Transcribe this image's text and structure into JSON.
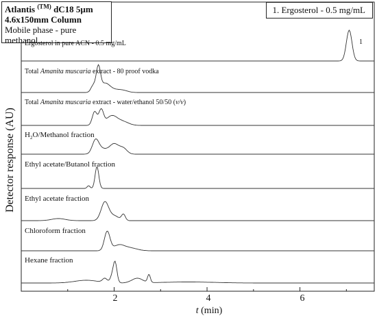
{
  "info_box": {
    "line1_main": "Atlantis",
    "line1_sup": "(TM)",
    "line1_rest": "dC18 5µm",
    "line2": "4.6x150mm Column",
    "line3": "Mobile phase - pure methanol"
  },
  "legend": {
    "text": "1. Ergosterol - 0.5 mg/mL"
  },
  "chart_data": {
    "type": "line",
    "xlabel_t": "t",
    "xlabel_unit": "(min)",
    "ylabel": "Detector response (AU)",
    "xlim": [
      0,
      7.6
    ],
    "xticks": [
      "2",
      "4",
      "6"
    ],
    "grid": false,
    "series": [
      {
        "name": "Ergosterol in pure ACN - 0.5 mg/mL",
        "peaks": [
          [
            7.06,
            45,
            0.06
          ]
        ]
      },
      {
        "name": "Total Amanita muscaria extract - 80 proof vodka",
        "peaks": [
          [
            1.55,
            10,
            0.05
          ],
          [
            1.66,
            35,
            0.045
          ],
          [
            1.8,
            12,
            0.1
          ],
          [
            2.0,
            4,
            0.15
          ],
          [
            2.2,
            2,
            0.1
          ]
        ]
      },
      {
        "name": "Total Amanita muscaria extract - water/ethanol 50/50 (v/v)",
        "peaks": [
          [
            1.58,
            20,
            0.05
          ],
          [
            1.72,
            22,
            0.05
          ],
          [
            1.95,
            14,
            0.12
          ],
          [
            2.2,
            5,
            0.12
          ]
        ]
      },
      {
        "name": "H2O/Methanol fraction",
        "peaks": [
          [
            1.6,
            20,
            0.07
          ],
          [
            1.75,
            7,
            0.1
          ],
          [
            2.0,
            15,
            0.1
          ],
          [
            2.2,
            8,
            0.08
          ]
        ]
      },
      {
        "name": "Ethyl acetate/Butanol fraction",
        "peaks": [
          [
            1.45,
            4,
            0.03
          ],
          [
            1.63,
            32,
            0.04
          ]
        ]
      },
      {
        "name": "Ethyl acetate fraction",
        "peaks": [
          [
            0.8,
            3,
            0.15
          ],
          [
            1.8,
            27,
            0.08
          ],
          [
            2.0,
            7,
            0.1
          ],
          [
            2.2,
            9,
            0.04
          ]
        ]
      },
      {
        "name": "Chloroform fraction",
        "peaks": [
          [
            1.85,
            28,
            0.06
          ],
          [
            2.1,
            8,
            0.12
          ],
          [
            2.35,
            4,
            0.15
          ]
        ]
      },
      {
        "name": "Hexane fraction",
        "peaks": [
          [
            1.4,
            4,
            0.25
          ],
          [
            1.8,
            6,
            0.05
          ],
          [
            1.95,
            8,
            0.04
          ],
          [
            2.02,
            30,
            0.04
          ],
          [
            2.5,
            7,
            0.12
          ],
          [
            2.75,
            12,
            0.03
          ]
        ]
      }
    ],
    "peak_annotations": [
      {
        "x": 7.06,
        "label": "1"
      }
    ]
  }
}
